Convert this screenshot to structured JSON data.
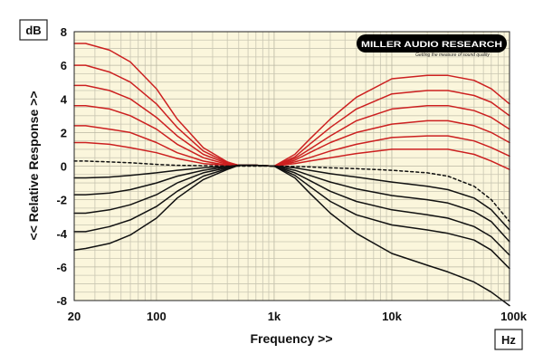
{
  "chart_data": {
    "type": "line",
    "xlabel": "Frequency >>",
    "ylabel": "<< Relative Response >>",
    "y_unit": "dB",
    "x_unit": "Hz",
    "xscale": "log",
    "xlim": [
      20,
      100000
    ],
    "ylim": [
      -8,
      8
    ],
    "grid": true,
    "x_ticks": [
      {
        "value": 20,
        "label": "20"
      },
      {
        "value": 100,
        "label": "100"
      },
      {
        "value": 1000,
        "label": "1k"
      },
      {
        "value": 10000,
        "label": "10k"
      },
      {
        "value": 100000,
        "label": "100k"
      }
    ],
    "y_ticks": [
      {
        "value": 8,
        "label": "8"
      },
      {
        "value": 6,
        "label": "6"
      },
      {
        "value": 4,
        "label": "4"
      },
      {
        "value": 2,
        "label": "2"
      },
      {
        "value": 0,
        "label": "0"
      },
      {
        "value": -2,
        "label": "-2"
      },
      {
        "value": -4,
        "label": "-4"
      },
      {
        "value": -6,
        "label": "-6"
      },
      {
        "value": -8,
        "label": "-8"
      }
    ],
    "logo": {
      "text": "MILLER AUDIO RESEARCH",
      "tagline": "Getting the measure of sound quality"
    },
    "colors": {
      "background": "#fbf6dc",
      "boost": "#cc2020",
      "cut": "#111111",
      "flat": "#111111",
      "grid": "#c9c6b2"
    },
    "series": [
      {
        "color": "#cc2020",
        "style": "solid",
        "x": [
          20,
          25,
          40,
          60,
          100,
          150,
          250,
          400,
          500,
          700,
          1000,
          1500,
          2000,
          3000,
          5000,
          10000,
          20000,
          30000,
          50000,
          70000,
          100000
        ],
        "y": [
          7.3,
          7.3,
          6.9,
          6.2,
          4.6,
          2.8,
          1.1,
          0.25,
          0.05,
          0.05,
          0,
          0.7,
          1.6,
          2.8,
          4.1,
          5.2,
          5.4,
          5.4,
          5.1,
          4.6,
          3.7
        ]
      },
      {
        "color": "#cc2020",
        "style": "solid",
        "x": [
          20,
          25,
          40,
          60,
          100,
          150,
          250,
          400,
          500,
          700,
          1000,
          1500,
          2000,
          3000,
          5000,
          10000,
          20000,
          30000,
          50000,
          70000,
          100000
        ],
        "y": [
          6.0,
          6.0,
          5.6,
          5.0,
          3.7,
          2.3,
          0.9,
          0.2,
          0.05,
          0.05,
          0,
          0.55,
          1.3,
          2.3,
          3.4,
          4.3,
          4.5,
          4.5,
          4.2,
          3.8,
          3.0
        ]
      },
      {
        "color": "#cc2020",
        "style": "solid",
        "x": [
          20,
          25,
          40,
          60,
          100,
          150,
          250,
          400,
          500,
          700,
          1000,
          1500,
          2000,
          3000,
          5000,
          10000,
          20000,
          30000,
          50000,
          70000,
          100000
        ],
        "y": [
          4.8,
          4.8,
          4.5,
          4.0,
          2.9,
          1.8,
          0.7,
          0.15,
          0.05,
          0.05,
          0,
          0.45,
          1.0,
          1.8,
          2.7,
          3.4,
          3.6,
          3.6,
          3.3,
          2.9,
          2.2
        ]
      },
      {
        "color": "#cc2020",
        "style": "solid",
        "x": [
          20,
          25,
          40,
          60,
          100,
          150,
          250,
          400,
          500,
          700,
          1000,
          1500,
          2000,
          3000,
          5000,
          10000,
          20000,
          30000,
          50000,
          70000,
          100000
        ],
        "y": [
          3.6,
          3.6,
          3.4,
          3.0,
          2.2,
          1.3,
          0.5,
          0.1,
          0.05,
          0.05,
          0,
          0.35,
          0.8,
          1.4,
          2.0,
          2.5,
          2.7,
          2.7,
          2.4,
          2.0,
          1.4
        ]
      },
      {
        "color": "#cc2020",
        "style": "solid",
        "x": [
          20,
          25,
          40,
          60,
          100,
          150,
          250,
          400,
          500,
          700,
          1000,
          1500,
          2000,
          3000,
          5000,
          10000,
          20000,
          30000,
          50000,
          70000,
          100000
        ],
        "y": [
          2.4,
          2.4,
          2.2,
          2.0,
          1.4,
          0.8,
          0.3,
          0.05,
          0.05,
          0.05,
          0,
          0.25,
          0.5,
          0.9,
          1.3,
          1.7,
          1.8,
          1.8,
          1.5,
          1.1,
          0.6
        ]
      },
      {
        "color": "#cc2020",
        "style": "solid",
        "x": [
          20,
          25,
          40,
          60,
          100,
          150,
          250,
          400,
          500,
          700,
          1000,
          1500,
          2000,
          3000,
          5000,
          10000,
          20000,
          30000,
          50000,
          70000,
          100000
        ],
        "y": [
          1.4,
          1.4,
          1.3,
          1.1,
          0.8,
          0.45,
          0.15,
          0.05,
          0.05,
          0.05,
          0,
          0.15,
          0.3,
          0.5,
          0.75,
          1.0,
          1.0,
          1.0,
          0.7,
          0.3,
          -0.2
        ]
      },
      {
        "color": "#111111",
        "style": "dashed",
        "x": [
          20,
          25,
          40,
          60,
          100,
          150,
          250,
          400,
          500,
          700,
          1000,
          1500,
          2000,
          3000,
          5000,
          10000,
          20000,
          30000,
          50000,
          70000,
          100000
        ],
        "y": [
          0.3,
          0.3,
          0.25,
          0.2,
          0.1,
          0.05,
          0.02,
          0,
          0,
          0,
          0,
          -0.02,
          -0.05,
          -0.1,
          -0.15,
          -0.25,
          -0.4,
          -0.6,
          -1.2,
          -2.0,
          -3.3
        ]
      },
      {
        "color": "#111111",
        "style": "solid",
        "x": [
          20,
          25,
          40,
          60,
          100,
          150,
          250,
          400,
          500,
          700,
          1000,
          1500,
          2000,
          3000,
          5000,
          10000,
          20000,
          30000,
          50000,
          70000,
          100000
        ],
        "y": [
          -0.7,
          -0.7,
          -0.65,
          -0.55,
          -0.4,
          -0.25,
          -0.1,
          -0.02,
          0.05,
          0.05,
          0,
          -0.1,
          -0.25,
          -0.45,
          -0.65,
          -0.95,
          -1.2,
          -1.4,
          -1.9,
          -2.6,
          -3.8
        ]
      },
      {
        "color": "#111111",
        "style": "solid",
        "x": [
          20,
          25,
          40,
          60,
          100,
          150,
          250,
          400,
          500,
          700,
          1000,
          1500,
          2000,
          3000,
          5000,
          10000,
          20000,
          30000,
          50000,
          70000,
          100000
        ],
        "y": [
          -1.7,
          -1.7,
          -1.6,
          -1.4,
          -1.0,
          -0.6,
          -0.25,
          -0.05,
          0.05,
          0.05,
          0,
          -0.25,
          -0.55,
          -0.95,
          -1.35,
          -1.75,
          -2.0,
          -2.2,
          -2.7,
          -3.3,
          -4.5
        ]
      },
      {
        "color": "#111111",
        "style": "solid",
        "x": [
          20,
          25,
          40,
          60,
          100,
          150,
          250,
          400,
          500,
          700,
          1000,
          1500,
          2000,
          3000,
          5000,
          10000,
          20000,
          30000,
          50000,
          70000,
          100000
        ],
        "y": [
          -2.8,
          -2.8,
          -2.6,
          -2.3,
          -1.7,
          -1.0,
          -0.4,
          -0.1,
          0.05,
          0.05,
          0,
          -0.4,
          -0.85,
          -1.5,
          -2.1,
          -2.6,
          -2.9,
          -3.1,
          -3.6,
          -4.2,
          -5.3
        ]
      },
      {
        "color": "#111111",
        "style": "solid",
        "x": [
          20,
          25,
          40,
          60,
          100,
          150,
          250,
          400,
          500,
          700,
          1000,
          1500,
          2000,
          3000,
          5000,
          10000,
          20000,
          30000,
          50000,
          70000,
          100000
        ],
        "y": [
          -3.9,
          -3.9,
          -3.6,
          -3.2,
          -2.4,
          -1.5,
          -0.6,
          -0.15,
          0.05,
          0.05,
          0,
          -0.55,
          -1.2,
          -2.1,
          -2.9,
          -3.5,
          -3.8,
          -4.0,
          -4.4,
          -5.0,
          -6.1
        ]
      },
      {
        "color": "#111111",
        "style": "solid",
        "x": [
          20,
          25,
          40,
          60,
          100,
          150,
          250,
          400,
          500,
          700,
          1000,
          1500,
          2000,
          3000,
          5000,
          10000,
          20000,
          30000,
          50000,
          70000,
          100000
        ],
        "y": [
          -5.0,
          -4.9,
          -4.6,
          -4.1,
          -3.1,
          -1.9,
          -0.8,
          -0.2,
          0.05,
          0.05,
          0,
          -0.7,
          -1.6,
          -2.8,
          -4.0,
          -5.2,
          -5.9,
          -6.3,
          -6.9,
          -7.5,
          -8.3
        ]
      }
    ]
  }
}
